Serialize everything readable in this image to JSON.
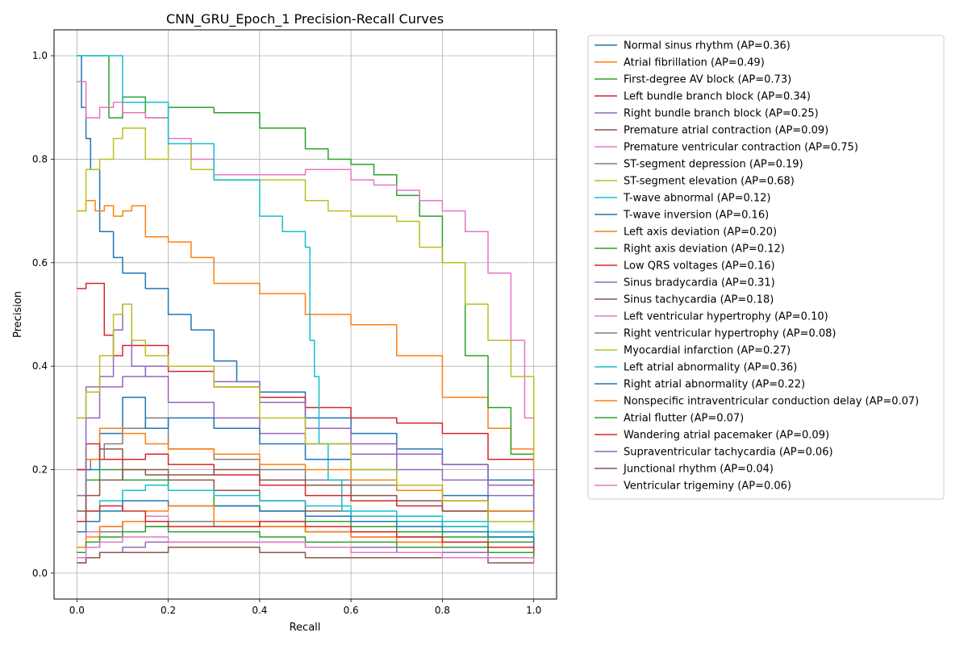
{
  "chart_data": {
    "type": "line",
    "title": "CNN_GRU_Epoch_1 Precision-Recall Curves",
    "xlabel": "Recall",
    "ylabel": "Precision",
    "xlim": [
      -0.05,
      1.05
    ],
    "ylim": [
      -0.05,
      1.05
    ],
    "xticks": [
      0.0,
      0.2,
      0.4,
      0.6,
      0.8,
      1.0
    ],
    "yticks": [
      0.0,
      0.2,
      0.4,
      0.6,
      0.8,
      1.0
    ],
    "grid": true,
    "legend_position": "outside-right",
    "series": [
      {
        "name": "Normal sinus rhythm (AP=0.36)",
        "color": "#1f77b4",
        "x": [
          0,
          0.01,
          0.02,
          0.03,
          0.05,
          0.08,
          0.1,
          0.15,
          0.2,
          0.25,
          0.3,
          0.35,
          0.4,
          0.5,
          0.6,
          0.7,
          0.8,
          0.9,
          1.0
        ],
        "y": [
          1.0,
          0.9,
          0.84,
          0.78,
          0.66,
          0.61,
          0.58,
          0.55,
          0.5,
          0.47,
          0.41,
          0.37,
          0.35,
          0.3,
          0.27,
          0.24,
          0.21,
          0.18,
          0.15
        ]
      },
      {
        "name": "Atrial fibrillation (AP=0.49)",
        "color": "#ff7f0e",
        "x": [
          0,
          0.02,
          0.04,
          0.06,
          0.08,
          0.1,
          0.12,
          0.15,
          0.2,
          0.25,
          0.3,
          0.35,
          0.4,
          0.5,
          0.6,
          0.7,
          0.8,
          0.9,
          0.95,
          1.0
        ],
        "y": [
          0.7,
          0.72,
          0.7,
          0.71,
          0.69,
          0.7,
          0.71,
          0.65,
          0.64,
          0.61,
          0.56,
          0.56,
          0.54,
          0.5,
          0.48,
          0.42,
          0.34,
          0.28,
          0.24,
          0.15
        ]
      },
      {
        "name": "First-degree AV block (AP=0.73)",
        "color": "#2ca02c",
        "x": [
          0,
          0.02,
          0.05,
          0.07,
          0.1,
          0.15,
          0.2,
          0.3,
          0.4,
          0.5,
          0.55,
          0.6,
          0.65,
          0.7,
          0.75,
          0.8,
          0.85,
          0.9,
          0.95,
          1.0
        ],
        "y": [
          1.0,
          1.0,
          1.0,
          0.88,
          0.92,
          0.88,
          0.9,
          0.89,
          0.86,
          0.82,
          0.8,
          0.79,
          0.77,
          0.73,
          0.69,
          0.6,
          0.42,
          0.32,
          0.23,
          0.12
        ]
      },
      {
        "name": "Left bundle branch block (AP=0.34)",
        "color": "#d62728",
        "x": [
          0,
          0.02,
          0.04,
          0.06,
          0.08,
          0.1,
          0.15,
          0.2,
          0.3,
          0.4,
          0.5,
          0.6,
          0.7,
          0.8,
          0.9,
          1.0
        ],
        "y": [
          0.55,
          0.56,
          0.56,
          0.46,
          0.42,
          0.44,
          0.44,
          0.39,
          0.36,
          0.34,
          0.32,
          0.3,
          0.29,
          0.27,
          0.22,
          0.13
        ]
      },
      {
        "name": "Right bundle branch block (AP=0.25)",
        "color": "#9467bd",
        "x": [
          0,
          0.02,
          0.05,
          0.08,
          0.1,
          0.12,
          0.15,
          0.2,
          0.3,
          0.4,
          0.5,
          0.6,
          0.7,
          0.8,
          0.9,
          1.0
        ],
        "y": [
          0.3,
          0.36,
          0.38,
          0.47,
          0.52,
          0.4,
          0.38,
          0.33,
          0.3,
          0.27,
          0.25,
          0.23,
          0.2,
          0.18,
          0.15,
          0.12
        ]
      },
      {
        "name": "Premature atrial contraction (AP=0.09)",
        "color": "#8c564b",
        "x": [
          0,
          0.02,
          0.05,
          0.1,
          0.15,
          0.2,
          0.3,
          0.4,
          0.5,
          0.6,
          0.7,
          0.8,
          0.9,
          1.0
        ],
        "y": [
          0.2,
          0.22,
          0.24,
          0.2,
          0.19,
          0.18,
          0.16,
          0.14,
          0.12,
          0.11,
          0.1,
          0.09,
          0.08,
          0.05
        ]
      },
      {
        "name": "Premature ventricular contraction (AP=0.75)",
        "color": "#e377c2",
        "x": [
          0,
          0.02,
          0.05,
          0.08,
          0.1,
          0.15,
          0.2,
          0.25,
          0.3,
          0.4,
          0.5,
          0.6,
          0.65,
          0.7,
          0.75,
          0.8,
          0.85,
          0.9,
          0.95,
          0.98,
          1.0
        ],
        "y": [
          0.95,
          0.88,
          0.9,
          0.91,
          0.89,
          0.88,
          0.84,
          0.8,
          0.77,
          0.77,
          0.78,
          0.76,
          0.75,
          0.74,
          0.72,
          0.7,
          0.66,
          0.58,
          0.45,
          0.3,
          0.18
        ]
      },
      {
        "name": "ST-segment depression (AP=0.19)",
        "color": "#7f7f7f",
        "x": [
          0,
          0.03,
          0.06,
          0.1,
          0.15,
          0.2,
          0.3,
          0.4,
          0.5,
          0.6,
          0.7,
          0.8,
          0.9,
          1.0
        ],
        "y": [
          0.2,
          0.22,
          0.25,
          0.28,
          0.3,
          0.24,
          0.22,
          0.2,
          0.18,
          0.17,
          0.16,
          0.14,
          0.12,
          0.09
        ]
      },
      {
        "name": "ST-segment elevation (AP=0.68)",
        "color": "#bcbd22",
        "x": [
          0,
          0.02,
          0.05,
          0.08,
          0.1,
          0.15,
          0.2,
          0.25,
          0.3,
          0.4,
          0.5,
          0.55,
          0.6,
          0.7,
          0.75,
          0.8,
          0.85,
          0.9,
          0.95,
          1.0
        ],
        "y": [
          0.7,
          0.78,
          0.8,
          0.84,
          0.86,
          0.8,
          0.83,
          0.78,
          0.76,
          0.76,
          0.72,
          0.7,
          0.69,
          0.68,
          0.63,
          0.6,
          0.52,
          0.45,
          0.38,
          0.2
        ]
      },
      {
        "name": "T-wave abnormal (AP=0.12)",
        "color": "#17becf",
        "x": [
          0,
          0.1,
          0.2,
          0.3,
          0.4,
          0.45,
          0.5,
          0.51,
          0.52,
          0.53,
          0.55,
          0.58,
          0.6,
          0.7,
          0.8,
          0.9,
          1.0
        ],
        "y": [
          1.0,
          0.91,
          0.83,
          0.76,
          0.69,
          0.66,
          0.63,
          0.45,
          0.38,
          0.25,
          0.18,
          0.12,
          0.11,
          0.1,
          0.09,
          0.07,
          0.05
        ]
      },
      {
        "name": "T-wave inversion (AP=0.16)",
        "color": "#1f77b4",
        "x": [
          0,
          0.02,
          0.05,
          0.1,
          0.15,
          0.2,
          0.3,
          0.4,
          0.5,
          0.6,
          0.7,
          0.8,
          0.9,
          1.0
        ],
        "y": [
          0.1,
          0.2,
          0.27,
          0.34,
          0.28,
          0.3,
          0.28,
          0.25,
          0.22,
          0.2,
          0.17,
          0.15,
          0.12,
          0.08
        ]
      },
      {
        "name": "Left axis deviation (AP=0.20)",
        "color": "#ff7f0e",
        "x": [
          0,
          0.02,
          0.05,
          0.1,
          0.15,
          0.2,
          0.3,
          0.4,
          0.5,
          0.6,
          0.7,
          0.8,
          0.9,
          1.0
        ],
        "y": [
          0.15,
          0.22,
          0.28,
          0.27,
          0.25,
          0.24,
          0.23,
          0.21,
          0.2,
          0.18,
          0.16,
          0.14,
          0.12,
          0.1
        ]
      },
      {
        "name": "Right axis deviation (AP=0.12)",
        "color": "#2ca02c",
        "x": [
          0,
          0.02,
          0.05,
          0.1,
          0.15,
          0.2,
          0.3,
          0.4,
          0.5,
          0.6,
          0.7,
          0.8,
          0.9,
          1.0
        ],
        "y": [
          0.1,
          0.18,
          0.2,
          0.18,
          0.18,
          0.16,
          0.13,
          0.12,
          0.1,
          0.09,
          0.08,
          0.07,
          0.06,
          0.05
        ]
      },
      {
        "name": "Low QRS voltages (AP=0.16)",
        "color": "#d62728",
        "x": [
          0,
          0.02,
          0.05,
          0.1,
          0.15,
          0.2,
          0.3,
          0.4,
          0.5,
          0.6,
          0.7,
          0.8,
          0.9,
          1.0
        ],
        "y": [
          0.2,
          0.25,
          0.22,
          0.22,
          0.23,
          0.21,
          0.19,
          0.17,
          0.15,
          0.14,
          0.13,
          0.12,
          0.1,
          0.07
        ]
      },
      {
        "name": "Sinus bradycardia (AP=0.31)",
        "color": "#9467bd",
        "x": [
          0,
          0.02,
          0.05,
          0.1,
          0.15,
          0.2,
          0.3,
          0.4,
          0.5,
          0.6,
          0.7,
          0.8,
          0.9,
          1.0
        ],
        "y": [
          0.15,
          0.3,
          0.36,
          0.38,
          0.4,
          0.4,
          0.37,
          0.33,
          0.28,
          0.25,
          0.23,
          0.21,
          0.17,
          0.1
        ]
      },
      {
        "name": "Sinus tachycardia (AP=0.18)",
        "color": "#8c564b",
        "x": [
          0,
          0.02,
          0.05,
          0.1,
          0.15,
          0.2,
          0.3,
          0.4,
          0.5,
          0.6,
          0.7,
          0.8,
          0.9,
          1.0
        ],
        "y": [
          0.12,
          0.15,
          0.18,
          0.2,
          0.2,
          0.19,
          0.2,
          0.18,
          0.17,
          0.15,
          0.14,
          0.12,
          0.1,
          0.06
        ]
      },
      {
        "name": "Left ventricular hypertrophy (AP=0.10)",
        "color": "#e377c2",
        "x": [
          0,
          0.02,
          0.05,
          0.1,
          0.15,
          0.2,
          0.3,
          0.4,
          0.5,
          0.6,
          0.7,
          0.8,
          0.9,
          1.0
        ],
        "y": [
          0.05,
          0.08,
          0.09,
          0.1,
          0.11,
          0.1,
          0.1,
          0.09,
          0.08,
          0.07,
          0.06,
          0.05,
          0.04,
          0.03
        ]
      },
      {
        "name": "Right ventricular hypertrophy (AP=0.08)",
        "color": "#7f7f7f",
        "x": [
          0,
          0.05,
          0.1,
          0.15,
          0.2,
          0.3,
          0.4,
          0.5,
          0.6,
          0.7,
          0.8,
          0.9,
          1.0
        ],
        "y": [
          0.05,
          0.08,
          0.1,
          0.09,
          0.1,
          0.09,
          0.09,
          0.08,
          0.08,
          0.07,
          0.06,
          0.05,
          0.04
        ]
      },
      {
        "name": "Myocardial infarction (AP=0.27)",
        "color": "#bcbd22",
        "x": [
          0,
          0.02,
          0.05,
          0.08,
          0.1,
          0.12,
          0.15,
          0.2,
          0.3,
          0.4,
          0.5,
          0.6,
          0.7,
          0.8,
          0.9,
          1.0
        ],
        "y": [
          0.3,
          0.35,
          0.42,
          0.5,
          0.52,
          0.45,
          0.42,
          0.4,
          0.36,
          0.3,
          0.25,
          0.2,
          0.17,
          0.14,
          0.1,
          0.07
        ]
      },
      {
        "name": "Left atrial abnormality (AP=0.36)",
        "color": "#17becf",
        "x": [
          0,
          0.02,
          0.05,
          0.1,
          0.15,
          0.2,
          0.3,
          0.4,
          0.5,
          0.6,
          0.7,
          0.8,
          0.9,
          1.0
        ],
        "y": [
          0.1,
          0.12,
          0.14,
          0.16,
          0.17,
          0.16,
          0.15,
          0.14,
          0.13,
          0.12,
          0.11,
          0.1,
          0.08,
          0.06
        ]
      },
      {
        "name": "Right atrial abnormality (AP=0.22)",
        "color": "#1f77b4",
        "x": [
          0,
          0.02,
          0.05,
          0.1,
          0.15,
          0.2,
          0.3,
          0.4,
          0.5,
          0.6,
          0.7,
          0.8,
          0.9,
          1.0
        ],
        "y": [
          0.08,
          0.1,
          0.12,
          0.14,
          0.14,
          0.13,
          0.13,
          0.12,
          0.11,
          0.1,
          0.09,
          0.08,
          0.07,
          0.05
        ]
      },
      {
        "name": "Nonspecific intraventricular conduction delay (AP=0.07)",
        "color": "#ff7f0e",
        "x": [
          0,
          0.02,
          0.05,
          0.1,
          0.15,
          0.2,
          0.3,
          0.4,
          0.5,
          0.6,
          0.7,
          0.8,
          0.9,
          1.0
        ],
        "y": [
          0.05,
          0.07,
          0.09,
          0.1,
          0.12,
          0.13,
          0.1,
          0.09,
          0.08,
          0.07,
          0.06,
          0.05,
          0.04,
          0.03
        ]
      },
      {
        "name": "Atrial flutter (AP=0.07)",
        "color": "#2ca02c",
        "x": [
          0,
          0.02,
          0.05,
          0.1,
          0.15,
          0.2,
          0.3,
          0.4,
          0.5,
          0.6,
          0.7,
          0.8,
          0.9,
          1.0
        ],
        "y": [
          0.04,
          0.06,
          0.07,
          0.08,
          0.09,
          0.08,
          0.08,
          0.07,
          0.06,
          0.06,
          0.05,
          0.05,
          0.04,
          0.03
        ]
      },
      {
        "name": "Wandering atrial pacemaker (AP=0.09)",
        "color": "#d62728",
        "x": [
          0,
          0.02,
          0.05,
          0.1,
          0.15,
          0.2,
          0.3,
          0.4,
          0.5,
          0.6,
          0.7,
          0.8,
          0.9,
          1.0
        ],
        "y": [
          0.1,
          0.12,
          0.13,
          0.12,
          0.1,
          0.09,
          0.09,
          0.1,
          0.09,
          0.08,
          0.07,
          0.06,
          0.05,
          0.04
        ]
      },
      {
        "name": "Supraventricular tachycardia (AP=0.06)",
        "color": "#9467bd",
        "x": [
          0,
          0.02,
          0.05,
          0.1,
          0.15,
          0.2,
          0.3,
          0.4,
          0.5,
          0.6,
          0.7,
          0.8,
          0.9,
          1.0
        ],
        "y": [
          0.02,
          0.03,
          0.04,
          0.05,
          0.06,
          0.06,
          0.06,
          0.06,
          0.05,
          0.05,
          0.04,
          0.04,
          0.03,
          0.02
        ]
      },
      {
        "name": "Junctional rhythm (AP=0.04)",
        "color": "#8c564b",
        "x": [
          0,
          0.02,
          0.05,
          0.1,
          0.15,
          0.2,
          0.3,
          0.4,
          0.5,
          0.6,
          0.7,
          0.8,
          0.9,
          1.0
        ],
        "y": [
          0.02,
          0.03,
          0.04,
          0.04,
          0.04,
          0.05,
          0.05,
          0.04,
          0.03,
          0.03,
          0.03,
          0.03,
          0.02,
          0.02
        ]
      },
      {
        "name": "Ventricular trigeminy (AP=0.06)",
        "color": "#e377c2",
        "x": [
          0,
          0.02,
          0.05,
          0.1,
          0.15,
          0.2,
          0.3,
          0.4,
          0.5,
          0.6,
          0.7,
          0.8,
          0.9,
          1.0
        ],
        "y": [
          0.03,
          0.05,
          0.06,
          0.07,
          0.07,
          0.06,
          0.06,
          0.06,
          0.05,
          0.04,
          0.04,
          0.03,
          0.03,
          0.02
        ]
      }
    ]
  }
}
